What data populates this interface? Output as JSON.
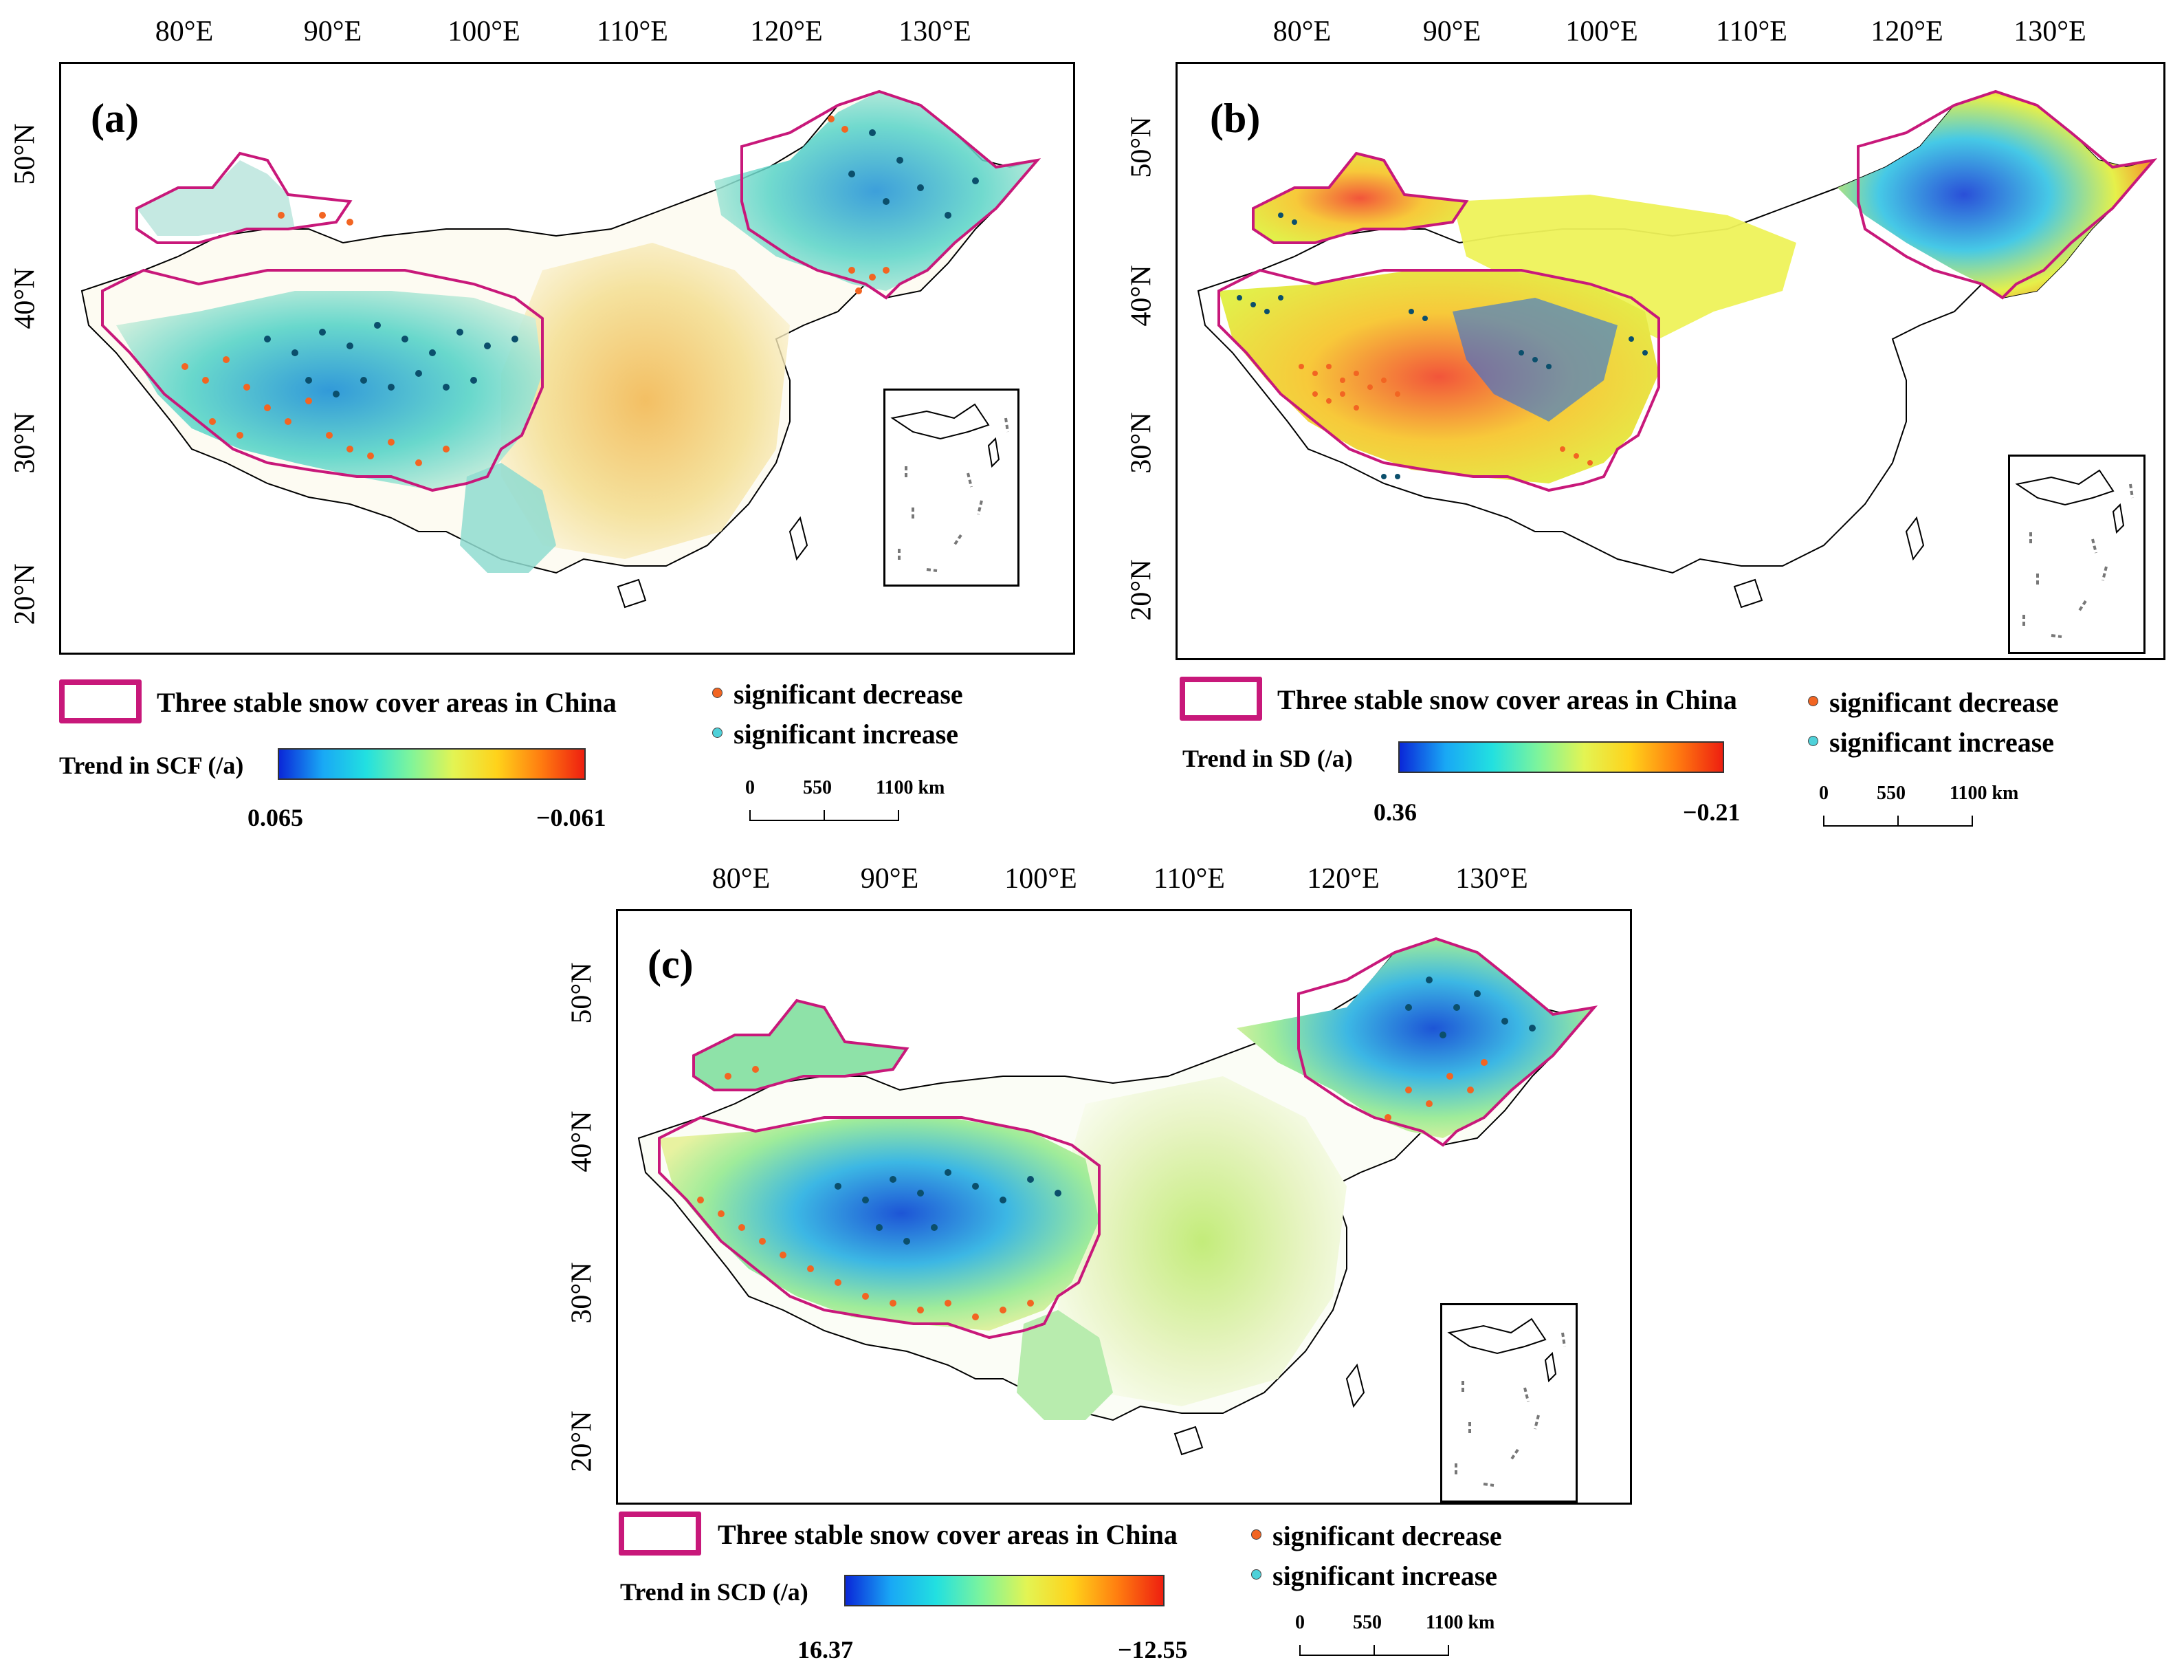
{
  "panels": [
    {
      "label": "(a)",
      "lon_ticks": [
        "80°E",
        "90°E",
        "100°E",
        "110°E",
        "120°E",
        "130°E"
      ],
      "lat_ticks": [
        "50°N",
        "40°N",
        "30°N",
        "20°N"
      ],
      "legend_region_label": "Three stable snow cover areas in China",
      "significant_decrease": "significant decrease",
      "significant_increase": "significant increase",
      "colorbar_title": "Trend in SCF (/a)",
      "colorbar_min_label": "0.065",
      "colorbar_max_label": "−0.061",
      "scale_labels": [
        "0",
        "550",
        "1100 km"
      ]
    },
    {
      "label": "(b)",
      "lon_ticks": [
        "80°E",
        "90°E",
        "100°E",
        "110°E",
        "120°E",
        "130°E"
      ],
      "lat_ticks": [
        "50°N",
        "40°N",
        "30°N",
        "20°N"
      ],
      "legend_region_label": "Three stable snow cover areas in China",
      "significant_decrease": "significant decrease",
      "significant_increase": "significant increase",
      "colorbar_title": "Trend in SD (/a)",
      "colorbar_min_label": "0.36",
      "colorbar_max_label": "−0.21",
      "scale_labels": [
        "0",
        "550",
        "1100 km"
      ]
    },
    {
      "label": "(c)",
      "lon_ticks": [
        "80°E",
        "90°E",
        "100°E",
        "110°E",
        "120°E",
        "130°E"
      ],
      "lat_ticks": [
        "50°N",
        "40°N",
        "30°N",
        "20°N"
      ],
      "legend_region_label": "Three stable snow cover areas in China",
      "significant_decrease": "significant decrease",
      "significant_increase": "significant increase",
      "colorbar_title": "Trend in SCD (/a)",
      "colorbar_min_label": "16.37",
      "colorbar_max_label": "−12.55",
      "scale_labels": [
        "0",
        "550",
        "1100 km"
      ]
    }
  ],
  "colors": {
    "region_outline": "#c8187a",
    "decrease_dot": "#f26522",
    "increase_dot": "#4fd1d9",
    "dark_dot": "#0b4f6c"
  }
}
